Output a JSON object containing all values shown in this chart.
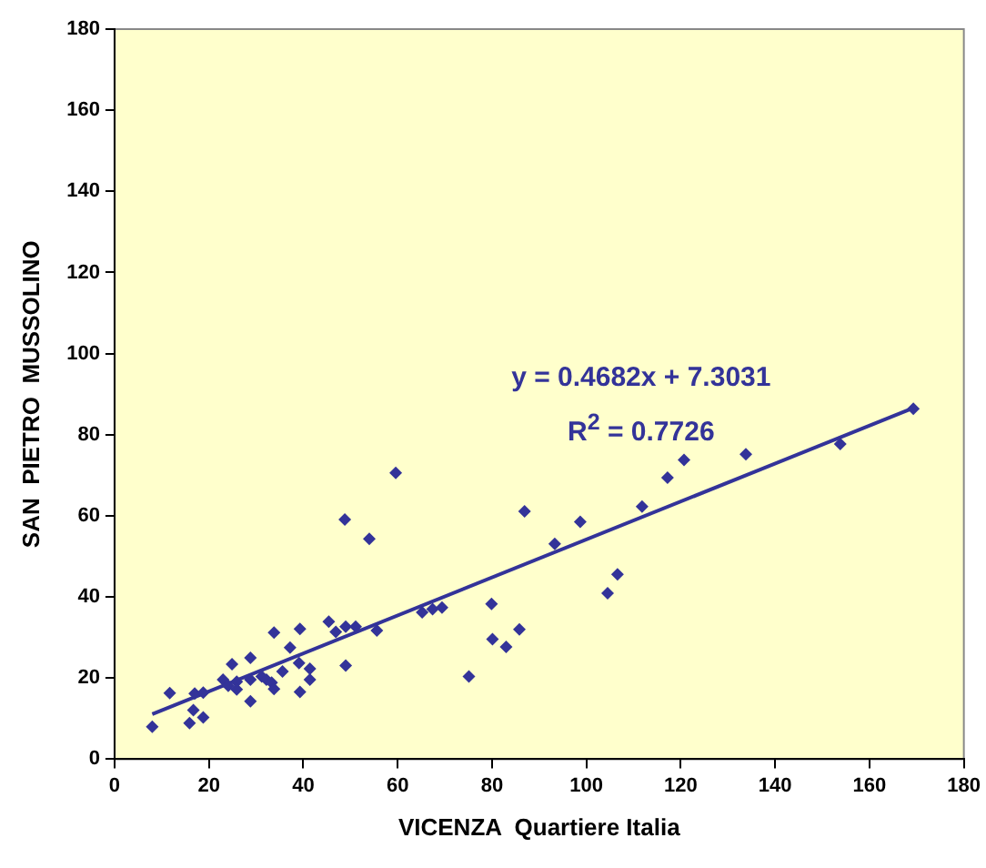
{
  "chart_data": {
    "type": "scatter",
    "xlabel": "VICENZA  Quartiere Italia",
    "ylabel": "SAN  PIETRO  MUSSOLINO",
    "xlim": [
      0,
      180
    ],
    "xticks": [
      0,
      20,
      40,
      60,
      80,
      100,
      120,
      140,
      160,
      180
    ],
    "ylim": [
      0,
      180
    ],
    "yticks": [
      0,
      20,
      40,
      60,
      80,
      100,
      120,
      140,
      160,
      180
    ],
    "grid": false,
    "legend": false,
    "series": [
      {
        "marker": "diamond",
        "color": "#333399",
        "x": [
          8.0,
          11.7,
          15.9,
          16.7,
          17.0,
          18.8,
          18.8,
          23.0,
          24.1,
          24.9,
          25.9,
          25.9,
          28.8,
          28.8,
          28.8,
          31.2,
          32.2,
          33.3,
          33.8,
          33.8,
          35.6,
          37.2,
          39.1,
          39.3,
          39.3,
          41.4,
          41.4,
          45.4,
          46.9,
          49.0,
          49.0,
          51.1,
          54.0,
          55.6,
          65.2,
          67.4,
          69.4,
          59.6,
          48.8,
          75.1,
          79.9,
          80.1,
          83.0,
          85.8,
          86.9,
          93.3,
          98.7,
          104.5,
          106.6,
          111.8,
          117.2,
          120.7,
          133.8,
          153.8,
          169.3
        ],
        "values": [
          8.0,
          16.3,
          8.9,
          12.1,
          16.2,
          16.4,
          10.3,
          19.6,
          18.1,
          23.4,
          19.1,
          17.2,
          25.0,
          19.6,
          14.3,
          20.4,
          19.6,
          18.9,
          31.2,
          17.3,
          21.6,
          27.5,
          23.7,
          32.1,
          16.6,
          22.3,
          19.6,
          33.9,
          31.4,
          32.7,
          23.1,
          32.7,
          54.3,
          31.7,
          36.2,
          37.0,
          37.4,
          70.6,
          59.1,
          20.4,
          38.3,
          29.6,
          27.7,
          32.0,
          61.1,
          53.1,
          58.5,
          40.9,
          45.6,
          62.3,
          69.4,
          73.8,
          75.2,
          77.7,
          86.4
        ]
      },
      {
        "type": "line",
        "marker": "none",
        "color": "#333399",
        "x": [
          8.0,
          169.3
        ],
        "values": [
          11.1,
          86.6
        ]
      }
    ],
    "annotations": [
      "y = 0.4682x + 7.3031",
      "R$^{2}$ = 0.7726"
    ]
  }
}
